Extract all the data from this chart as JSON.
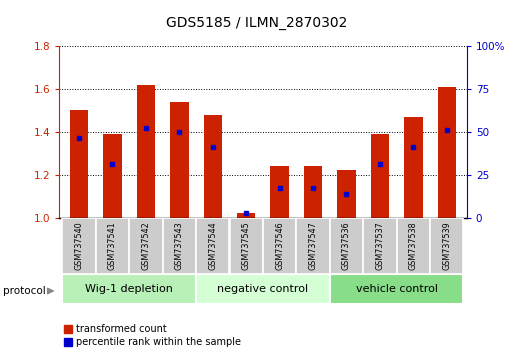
{
  "title": "GDS5185 / ILMN_2870302",
  "samples": [
    "GSM737540",
    "GSM737541",
    "GSM737542",
    "GSM737543",
    "GSM737544",
    "GSM737545",
    "GSM737546",
    "GSM737547",
    "GSM737536",
    "GSM737537",
    "GSM737538",
    "GSM737539"
  ],
  "red_values": [
    1.5,
    1.39,
    1.62,
    1.54,
    1.48,
    1.02,
    1.24,
    1.24,
    1.22,
    1.39,
    1.47,
    1.61
  ],
  "blue_values": [
    1.37,
    1.25,
    1.42,
    1.4,
    1.33,
    1.02,
    1.14,
    1.14,
    1.11,
    1.25,
    1.33,
    1.41
  ],
  "ylim_left": [
    1.0,
    1.8
  ],
  "ylim_right": [
    0,
    100
  ],
  "yticks_left": [
    1.0,
    1.2,
    1.4,
    1.6,
    1.8
  ],
  "yticks_right": [
    0,
    25,
    50,
    75,
    100
  ],
  "groups": [
    {
      "label": "Wig-1 depletion",
      "indices": [
        0,
        1,
        2,
        3
      ],
      "color": "#b8f0b8"
    },
    {
      "label": "negative control",
      "indices": [
        4,
        5,
        6,
        7
      ],
      "color": "#d4ffd4"
    },
    {
      "label": "vehicle control",
      "indices": [
        8,
        9,
        10,
        11
      ],
      "color": "#88dd88"
    }
  ],
  "bar_color_red": "#cc2200",
  "bar_color_blue": "#0000cc",
  "bar_width": 0.55,
  "color_left": "#cc2200",
  "color_right": "#0000cc",
  "protocol_label": "protocol",
  "legend_red": "transformed count",
  "legend_blue": "percentile rank within the sample",
  "tick_label_bg": "#cccccc",
  "group_label_size": 8,
  "title_fontsize": 10
}
